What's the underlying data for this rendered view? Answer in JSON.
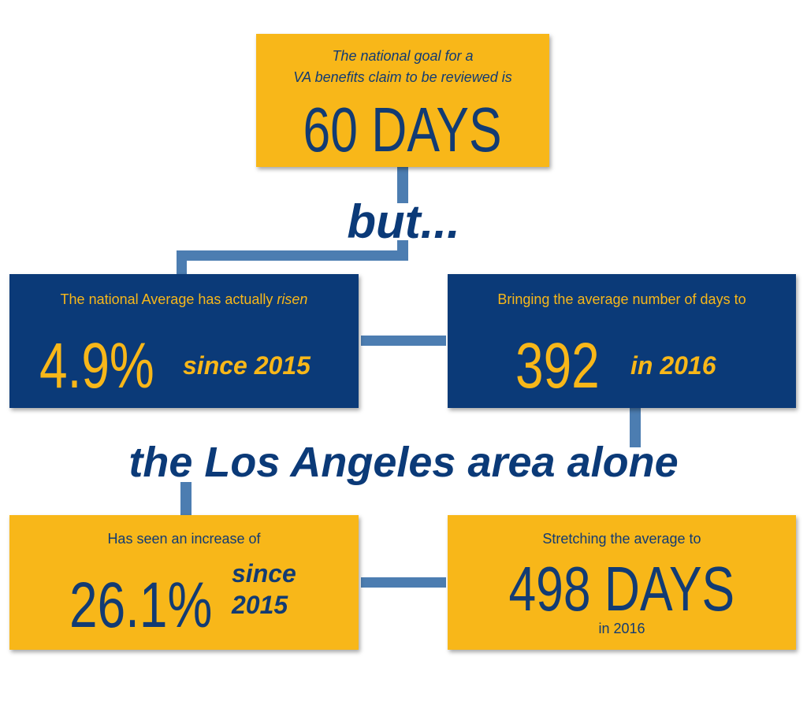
{
  "top_box": {
    "line1": "The national goal for a",
    "line2": "VA benefits claim to be reviewed is",
    "figure": "60 DAYS"
  },
  "connector_1": "but...",
  "national_average": {
    "caption": "The national Average has actually",
    "caption_emphasis": "risen",
    "figure": "4.9%",
    "qualifier": "since 2015"
  },
  "national_days": {
    "caption": "Bringing the average number of days to",
    "figure": "392",
    "qualifier": "in 2016"
  },
  "connector_2": "the Los Angeles area alone",
  "la_increase": {
    "caption": "Has seen an increase of",
    "figure": "26.1%",
    "qualifier_line1": "since",
    "qualifier_line2": "2015"
  },
  "la_days": {
    "caption": "Stretching the average to",
    "figure": "498 DAYS",
    "qualifier": "in 2016"
  }
}
